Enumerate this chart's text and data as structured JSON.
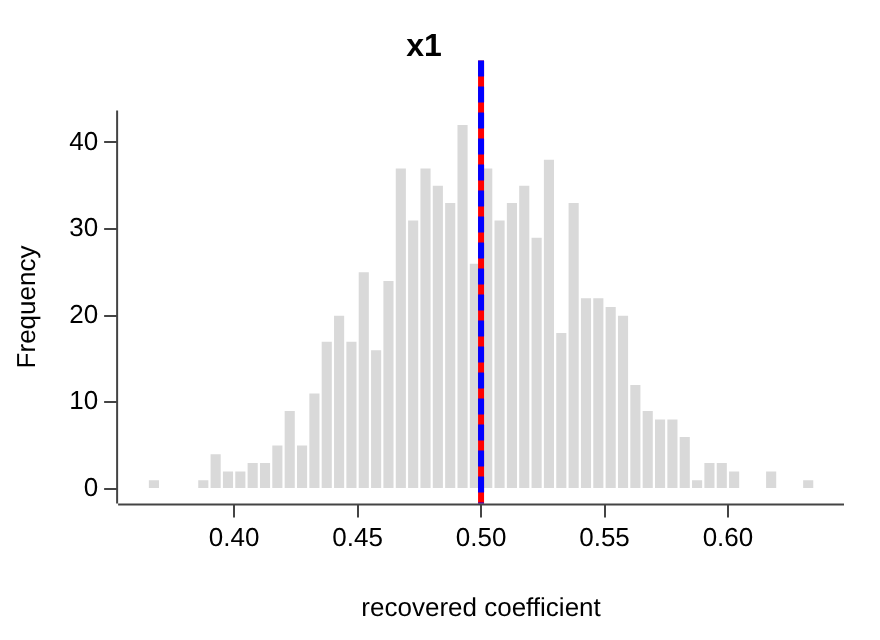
{
  "chart_data": {
    "type": "histogram",
    "title": "x1",
    "xlabel": "recovered coefficient",
    "ylabel": "Frequency",
    "bins": [
      0.365,
      0.37,
      0.375,
      0.38,
      0.385,
      0.39,
      0.395,
      0.4,
      0.405,
      0.41,
      0.415,
      0.42,
      0.425,
      0.43,
      0.435,
      0.44,
      0.445,
      0.45,
      0.455,
      0.46,
      0.465,
      0.47,
      0.475,
      0.48,
      0.485,
      0.49,
      0.495,
      0.5,
      0.505,
      0.51,
      0.515,
      0.52,
      0.525,
      0.53,
      0.535,
      0.54,
      0.545,
      0.55,
      0.555,
      0.56,
      0.565,
      0.57,
      0.575,
      0.58,
      0.585,
      0.59,
      0.595,
      0.6,
      0.605,
      0.61,
      0.615,
      0.62,
      0.625,
      0.63,
      0.635
    ],
    "values": [
      1,
      0,
      0,
      0,
      1,
      4,
      2,
      2,
      3,
      3,
      5,
      9,
      5,
      11,
      17,
      20,
      17,
      25,
      16,
      24,
      37,
      31,
      37,
      35,
      33,
      42,
      26,
      37,
      31,
      33,
      35,
      29,
      38,
      18,
      33,
      22,
      22,
      21,
      20,
      12,
      9,
      8,
      8,
      6,
      1,
      3,
      3,
      2,
      0,
      0,
      2,
      0,
      0,
      1
    ],
    "color": "#d9d9d9",
    "xlim": [
      0.353,
      0.647
    ],
    "xticks": [
      {
        "value": 0.4,
        "label": "0.40"
      },
      {
        "value": 0.45,
        "label": "0.45"
      },
      {
        "value": 0.5,
        "label": "0.50"
      },
      {
        "value": 0.55,
        "label": "0.55"
      },
      {
        "value": 0.6,
        "label": "0.60"
      }
    ],
    "ylim": [
      -1.7,
      43.7
    ],
    "yticks": [
      0,
      10,
      20,
      30,
      40
    ],
    "ref_lines": [
      {
        "axis": "x",
        "value": 0.5,
        "color": "#ff0000",
        "line_style": "solid"
      },
      {
        "axis": "x",
        "value": 0.5,
        "color": "#0000ff",
        "line_style": "dashed"
      }
    ]
  }
}
